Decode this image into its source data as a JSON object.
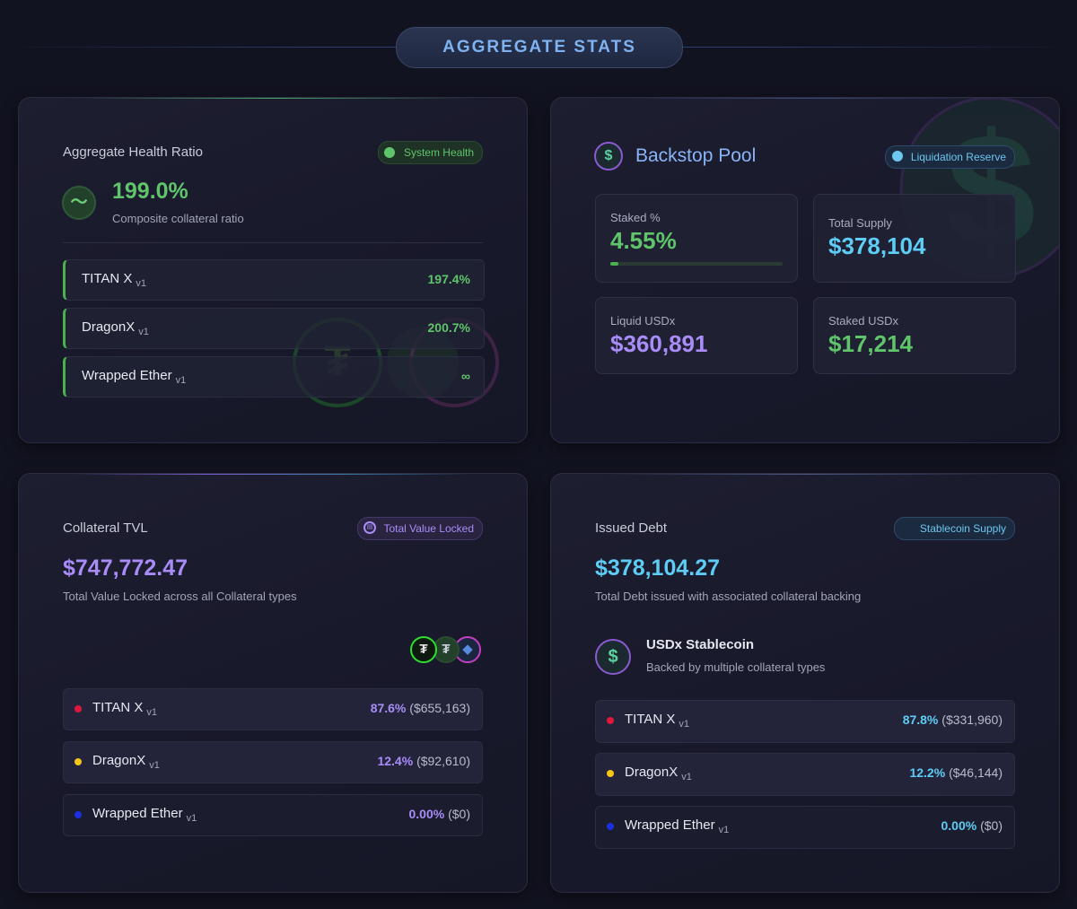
{
  "header": {
    "title": "AGGREGATE STATS"
  },
  "health": {
    "title": "Aggregate Health Ratio",
    "badge": "System Health",
    "value": "199.0%",
    "caption": "Composite collateral ratio",
    "rows": [
      {
        "name": "TITAN X",
        "version": "v1",
        "value": "197.4%"
      },
      {
        "name": "DragonX",
        "version": "v1",
        "value": "200.7%"
      },
      {
        "name": "Wrapped Ether",
        "version": "v1",
        "value": "∞"
      }
    ]
  },
  "backstop": {
    "title": "Backstop Pool",
    "badge": "Liquidation Reserve",
    "stats": [
      {
        "label": "Staked %",
        "value": "4.55%"
      },
      {
        "label": "Total Supply",
        "value": "$378,104"
      },
      {
        "label": "Liquid USDx",
        "value": "$360,891"
      },
      {
        "label": "Staked USDx",
        "value": "$17,214"
      }
    ]
  },
  "tvl": {
    "title": "Collateral TVL",
    "badge": "Total Value Locked",
    "value": "$747,772.47",
    "caption": "Total Value Locked across all Collateral types",
    "rows": [
      {
        "name": "TITAN X",
        "version": "v1",
        "share": "87.6%",
        "amount": "($655,163)"
      },
      {
        "name": "DragonX",
        "version": "v1",
        "share": "12.4%",
        "amount": "($92,610)"
      },
      {
        "name": "Wrapped Ether",
        "version": "v1",
        "share": "0.00%",
        "amount": "($0)"
      }
    ]
  },
  "debt": {
    "title": "Issued Debt",
    "badge": "Stablecoin Supply",
    "value": "$378,104.27",
    "caption": "Total Debt issued with associated collateral backing",
    "token": {
      "name": "USDx Stablecoin",
      "caption": "Backed by multiple collateral types"
    },
    "rows": [
      {
        "name": "TITAN X",
        "version": "v1",
        "share": "87.8%",
        "amount": "($331,960)"
      },
      {
        "name": "DragonX",
        "version": "v1",
        "share": "12.2%",
        "amount": "($46,144)"
      },
      {
        "name": "Wrapped Ether",
        "version": "v1",
        "share": "0.00%",
        "amount": "($0)"
      }
    ]
  }
}
